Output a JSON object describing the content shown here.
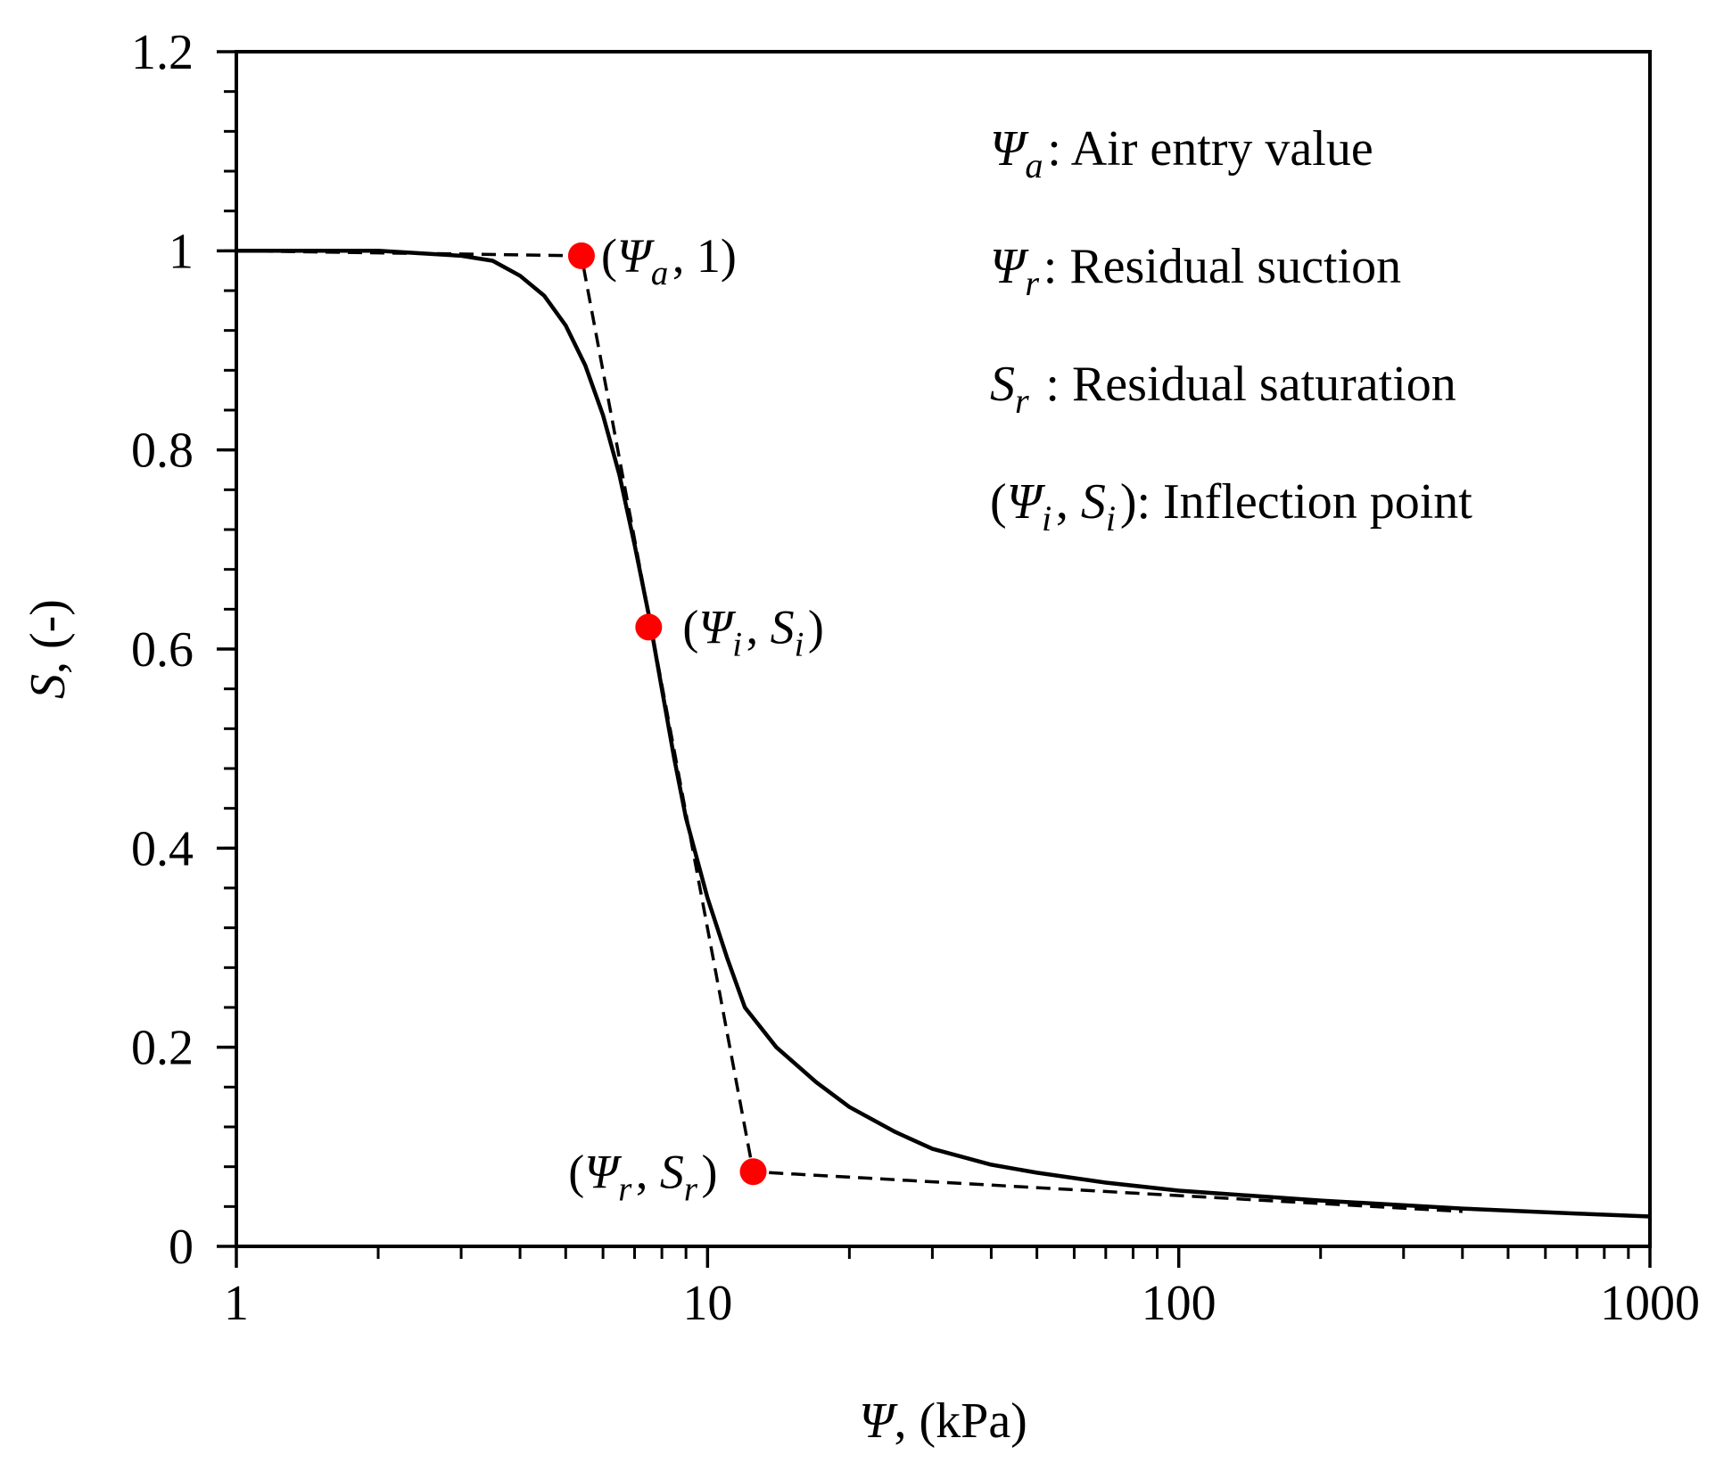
{
  "chart_data": {
    "type": "line",
    "title": "",
    "xscale": "log",
    "xlim": [
      1,
      1000
    ],
    "ylim": [
      0,
      1.2
    ],
    "grid": false,
    "xlabel": {
      "symbol": "Ψ",
      "rest": ", (kPa)"
    },
    "ylabel": {
      "symbol": "S",
      "rest": ", (-)"
    },
    "xticks": [
      {
        "value": 1,
        "label": "1"
      },
      {
        "value": 10,
        "label": "10"
      },
      {
        "value": 100,
        "label": "100"
      },
      {
        "value": 1000,
        "label": "1000"
      }
    ],
    "yticks": [
      {
        "value": 0,
        "label": "0"
      },
      {
        "value": 0.2,
        "label": "0.2"
      },
      {
        "value": 0.4,
        "label": "0.4"
      },
      {
        "value": 0.6,
        "label": "0.6"
      },
      {
        "value": 0.8,
        "label": "0.8"
      },
      {
        "value": 1.0,
        "label": "1"
      },
      {
        "value": 1.2,
        "label": "1.2"
      }
    ],
    "yminor_step": 0.04,
    "series": [
      {
        "name": "SWCC",
        "style": "solid",
        "color": "#000000",
        "x": [
          1,
          2,
          3,
          3.5,
          4,
          4.5,
          5,
          5.5,
          6,
          6.5,
          7,
          7.5,
          8,
          8.5,
          9,
          10,
          11,
          12,
          14,
          17,
          20,
          25,
          30,
          40,
          50,
          70,
          100,
          200,
          400,
          700,
          1000
        ],
        "y": [
          1.0,
          1.0,
          0.995,
          0.99,
          0.975,
          0.955,
          0.925,
          0.885,
          0.835,
          0.775,
          0.705,
          0.635,
          0.56,
          0.49,
          0.43,
          0.35,
          0.29,
          0.24,
          0.2,
          0.165,
          0.14,
          0.115,
          0.098,
          0.082,
          0.074,
          0.064,
          0.056,
          0.046,
          0.038,
          0.033,
          0.03
        ]
      },
      {
        "name": "Tangent construction",
        "style": "dashed",
        "color": "#000000",
        "x": [
          1,
          5.4,
          12.5,
          400
        ],
        "y": [
          1.0,
          0.995,
          0.075,
          0.035
        ]
      }
    ],
    "points": [
      {
        "name": "air-entry-point",
        "x": 5.4,
        "y": 0.995,
        "color": "#ff0000"
      },
      {
        "name": "inflection-point",
        "x": 7.5,
        "y": 0.622,
        "color": "#ff0000"
      },
      {
        "name": "residual-point",
        "x": 12.5,
        "y": 0.075,
        "color": "#ff0000"
      }
    ],
    "annotations": [
      {
        "name": "air-entry-label",
        "open": "(",
        "symbol": "Ψ",
        "sub": "a",
        "sep": ", ",
        "symbol2": "",
        "sub2": "",
        "val": "1",
        "close": ")"
      },
      {
        "name": "inflection-label",
        "open": "(",
        "symbol": "Ψ",
        "sub": "i",
        "sep": ", ",
        "symbol2": "S",
        "sub2": "i",
        "val": "",
        "close": ")"
      },
      {
        "name": "residual-label",
        "open": "(",
        "symbol": "Ψ",
        "sub": "r",
        "sep": ", ",
        "symbol2": "S",
        "sub2": "r",
        "val": "",
        "close": ")"
      }
    ],
    "legend": {
      "placement": "top-right",
      "entries": [
        {
          "open": "",
          "symbol": "Ψ",
          "sub": "a",
          "sep": "",
          "symbol2": "",
          "sub2": "",
          "close": "",
          "text": ": Air entry value"
        },
        {
          "open": "",
          "symbol": "Ψ",
          "sub": "r",
          "sep": "",
          "symbol2": "",
          "sub2": "",
          "close": "",
          "text": ": Residual suction"
        },
        {
          "open": "",
          "symbol": "S",
          "sub": "r",
          "sep": "",
          "symbol2": "",
          "sub2": "",
          "close": "",
          "text": " : Residual saturation"
        },
        {
          "open": "(",
          "symbol": "Ψ",
          "sub": "i",
          "sep": ", ",
          "symbol2": "S",
          "sub2": "i",
          "close": ")",
          "text": ": Inflection point"
        }
      ]
    }
  }
}
